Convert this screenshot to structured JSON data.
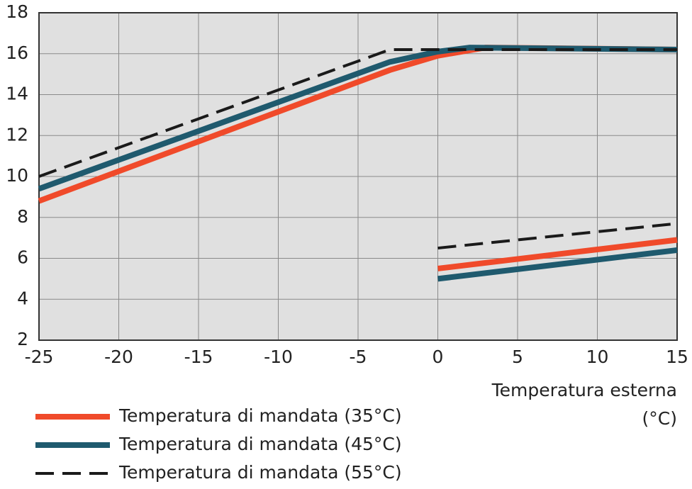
{
  "chart_data": {
    "type": "line",
    "x_label": [
      "Temperatura esterna",
      "(°C)"
    ],
    "xlim": [
      -25,
      15
    ],
    "xticks": [
      -25,
      -20,
      -15,
      -10,
      -5,
      0,
      5,
      10,
      15
    ],
    "ylim": [
      2,
      18
    ],
    "yticks": [
      2,
      4,
      6,
      8,
      10,
      12,
      14,
      16,
      18
    ],
    "grid": true,
    "series": [
      {
        "name": "Temperatura di mandata (35°C)",
        "color": "#f04a2a",
        "dashed": false,
        "x": [
          -25,
          -3,
          0,
          3,
          15,
          null,
          0,
          15
        ],
        "values": [
          8.8,
          15.2,
          15.9,
          16.3,
          16.2,
          null,
          5.5,
          6.9
        ]
      },
      {
        "name": "Temperatura di mandata (45°C)",
        "color": "#1f5a6e",
        "dashed": false,
        "x": [
          -25,
          -3,
          0,
          2,
          15,
          null,
          0,
          15
        ],
        "values": [
          9.4,
          15.6,
          16.1,
          16.3,
          16.2,
          null,
          5.0,
          6.4
        ]
      },
      {
        "name": "Temperatura di mandata (55°C)",
        "color": "#1a1a1a",
        "dashed": true,
        "x": [
          -25,
          -3,
          15,
          null,
          0,
          15
        ],
        "values": [
          10.0,
          16.2,
          16.2,
          null,
          6.5,
          7.7
        ]
      }
    ]
  }
}
